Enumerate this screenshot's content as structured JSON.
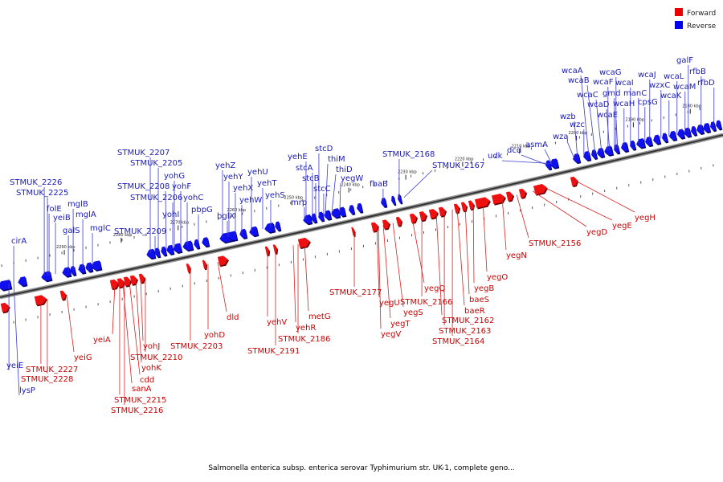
{
  "legend": [
    {
      "label": "Forward",
      "color": "#ee0000"
    },
    {
      "label": "Reverse",
      "color": "#0000ee"
    }
  ],
  "caption": "Salmonella enterica subsp. enterica serovar Typhimurium str. UK-1, complete geno...",
  "scale_ticks": [
    "2180 kbp",
    "2190 kbp",
    "2200 kbp",
    "2210 kbp",
    "2220 kbp",
    "2230 kbp",
    "2240 kbp",
    "2250 kbp",
    "2260 kbp",
    "2270 kbp",
    "2280 kbp",
    "2290 kbp"
  ],
  "reverse_genes": [
    "cirA",
    "yeiE",
    "lysP",
    "STMUK_2226",
    "STMUK_2225",
    "folE",
    "yeiB",
    "galS",
    "mglB",
    "mglA",
    "mglC",
    "STMUK_2209",
    "STMUK_2207",
    "STMUK_2205",
    "STMUK_2208",
    "STMUK_2206",
    "yohG",
    "yohF",
    "yohC",
    "yohI",
    "pbpG",
    "yehZ",
    "yehY",
    "yehX",
    "yehW",
    "yehU",
    "yehT",
    "yehS",
    "bglX",
    "yehE",
    "stcD",
    "thiM",
    "thiD",
    "stcA",
    "stcB",
    "stcC",
    "mrp",
    "yegW",
    "fbaB",
    "STMUK_2168",
    "STMUK_2167",
    "udk",
    "dcd",
    "asmA",
    "wza",
    "wzb",
    "wzc",
    "wcaA",
    "wcaB",
    "wcaC",
    "wcaD",
    "wcaE",
    "wcaF",
    "wcaG",
    "wcaH",
    "wcaI",
    "gmd",
    "manC",
    "cpsG",
    "wcaJ",
    "wzxC",
    "wcaK",
    "wcaL",
    "wcaM",
    "galF",
    "rfbB",
    "rfbD"
  ],
  "forward_genes": [
    "STMUK_2227",
    "STMUK_2228",
    "yeiG",
    "yeiA",
    "sanA",
    "cdd",
    "yohK",
    "yohJ",
    "STMUK_2210",
    "STMUK_2215",
    "STMUK_2216",
    "yohD",
    "STMUK_2203",
    "dld",
    "yehV",
    "STMUK_2191",
    "yehR",
    "STMUK_2186",
    "metG",
    "STMUK_2177",
    "yegU",
    "yegT",
    "yegV",
    "yegS",
    "yegQ",
    "STMUK_2166",
    "STMUK_2162",
    "STMUK_2163",
    "STMUK_2164",
    "baeR",
    "baeS",
    "yegB",
    "yegO",
    "yegN",
    "STMUK_2156",
    "yegD",
    "yegE",
    "yegH"
  ]
}
